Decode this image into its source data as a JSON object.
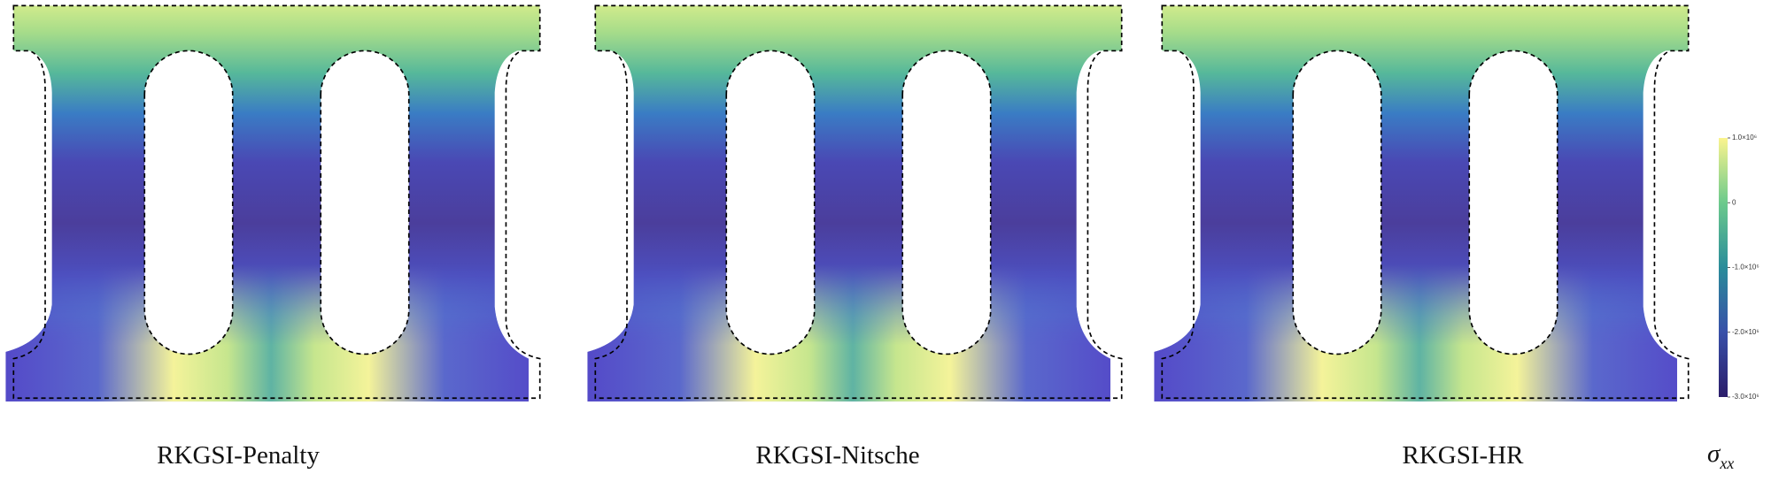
{
  "panels": [
    {
      "label": "RKGSI-Penalty"
    },
    {
      "label": "RKGSI-Nitsche"
    },
    {
      "label": "RKGSI-HR"
    }
  ],
  "colorbar": {
    "lim": [
      -3000000,
      1000000
    ],
    "ticks": [
      {
        "value": 1000000,
        "label": "1.0×10⁶"
      },
      {
        "value": 0,
        "label": "0"
      },
      {
        "value": -1000000,
        "label": "-1.0×10⁶"
      },
      {
        "value": -2000000,
        "label": "-2.0×10⁶"
      },
      {
        "value": -3000000,
        "label": "-3.0×10⁶"
      }
    ],
    "label": {
      "symbol": "σ",
      "subscript": "xx"
    }
  }
}
